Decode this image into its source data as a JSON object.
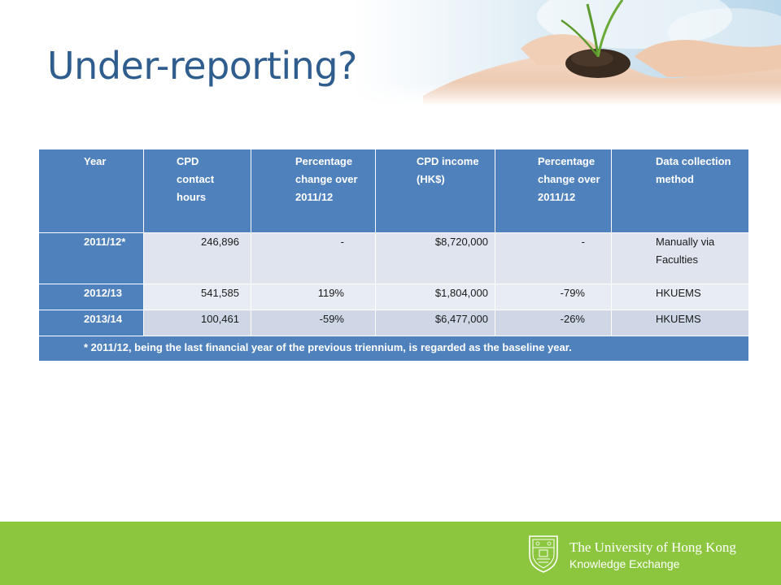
{
  "slide": {
    "title": "Under-reporting?"
  },
  "table": {
    "headers": [
      [
        "Year"
      ],
      [
        "CPD",
        "contact",
        "hours"
      ],
      [
        "Percentage",
        "change over",
        "2011/12"
      ],
      [
        "CPD income",
        "(HK$)"
      ],
      [
        "Percentage",
        "change over",
        "2011/12"
      ],
      [
        "Data collection",
        "method"
      ]
    ],
    "rows": [
      {
        "year": "2011/12*",
        "hours": "246,896",
        "hours_change": "-",
        "income": "$8,720,000",
        "income_change": "-",
        "method_line1": "Manually via",
        "method_line2": "Faculties"
      },
      {
        "year": "2012/13",
        "hours": "541,585",
        "hours_change": "119%",
        "income": "$1,804,000",
        "income_change": "-79%",
        "method_line1": "HKUEMS",
        "method_line2": ""
      },
      {
        "year": "2013/14",
        "hours": "100,461",
        "hours_change": "-59%",
        "income": "$6,477,000",
        "income_change": "-26%",
        "method_line1": "HKUEMS",
        "method_line2": ""
      }
    ],
    "footnote": "* 2011/12, being the last financial year of the previous triennium, is regarded as the baseline year."
  },
  "footer": {
    "university": "The University of Hong Kong",
    "unit": "Knowledge Exchange"
  },
  "colors": {
    "title": "#2f5d8d",
    "table_header": "#4f81bd",
    "table_cell": "#cfd7e6",
    "footer_band": "#8cc63e"
  }
}
